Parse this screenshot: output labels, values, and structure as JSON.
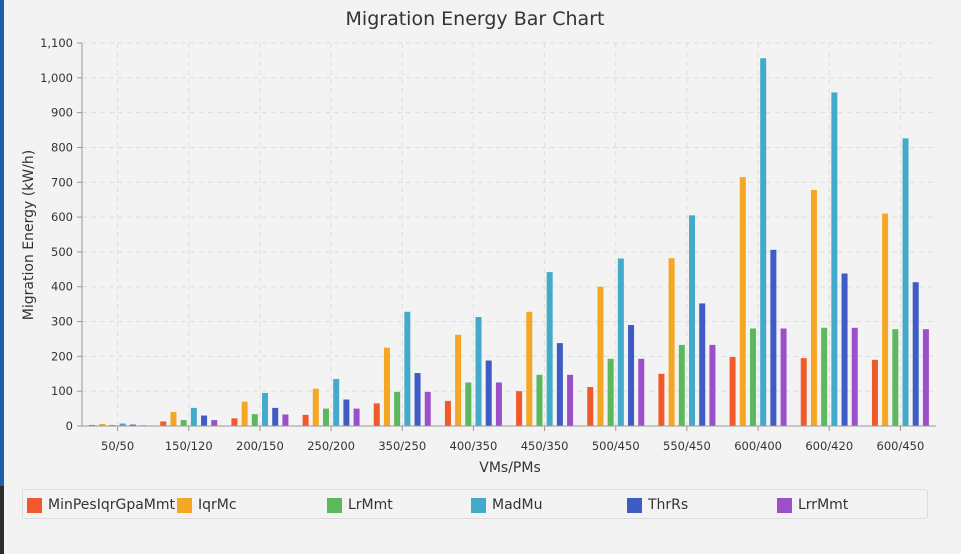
{
  "chart_data": {
    "type": "bar",
    "title": "Migration Energy Bar Chart",
    "xlabel": "VMs/PMs",
    "ylabel": "Migration Energy (kW/h)",
    "ylim": [
      0,
      1100
    ],
    "yticks": [
      "0",
      "100",
      "200",
      "300",
      "400",
      "500",
      "600",
      "700",
      "800",
      "900",
      "1,000",
      "1,100"
    ],
    "grid": true,
    "legend_position": "bottom",
    "categories": [
      "50/50",
      "150/120",
      "200/150",
      "250/200",
      "350/250",
      "400/350",
      "450/350",
      "500/450",
      "550/450",
      "600/400",
      "600/420",
      "600/450"
    ],
    "series": [
      {
        "name": "MinPesIqrGpaMmt",
        "color": "#f0592a",
        "values": [
          3,
          13,
          22,
          32,
          65,
          72,
          100,
          112,
          150,
          198,
          195,
          190
        ]
      },
      {
        "name": "IqrMc",
        "color": "#f5a623",
        "values": [
          6,
          40,
          70,
          107,
          225,
          262,
          328,
          400,
          482,
          715,
          678,
          610
        ]
      },
      {
        "name": "LrMmt",
        "color": "#5cb85c",
        "values": [
          3,
          17,
          34,
          50,
          98,
          125,
          147,
          193,
          233,
          280,
          282,
          278
        ]
      },
      {
        "name": "MadMu",
        "color": "#44aacc",
        "values": [
          7,
          52,
          95,
          135,
          328,
          313,
          442,
          481,
          605,
          1056,
          958,
          826
        ]
      },
      {
        "name": "ThrRs",
        "color": "#3f5bc4",
        "values": [
          4,
          30,
          52,
          76,
          152,
          188,
          238,
          290,
          352,
          506,
          438,
          413
        ]
      },
      {
        "name": "LrrMmt",
        "color": "#9b4fc9",
        "values": [
          2,
          17,
          33,
          50,
          98,
          125,
          147,
          193,
          233,
          280,
          282,
          278
        ]
      }
    ]
  }
}
